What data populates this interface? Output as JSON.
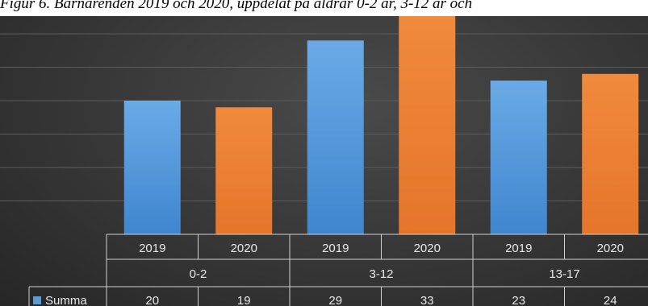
{
  "caption": "Figur 6. Barnärenden 2019 och 2020, uppdelat på åldrar 0-2 år, 3-12 år och",
  "chart_data": {
    "type": "bar",
    "title": "",
    "groups": [
      "0-2",
      "3-12",
      "13-17"
    ],
    "categories": [
      "2019",
      "2020",
      "2019",
      "2020",
      "2019",
      "2020"
    ],
    "series": [
      {
        "name": "Summa",
        "values": [
          20,
          19,
          29,
          33,
          23,
          24
        ]
      }
    ],
    "year_colors": {
      "2019": "#4f93d8",
      "2020": "#ed7d31"
    },
    "legend_color": "#5b9bd5",
    "ylim": [
      0,
      35
    ],
    "grid": true,
    "legend": "data-table"
  }
}
